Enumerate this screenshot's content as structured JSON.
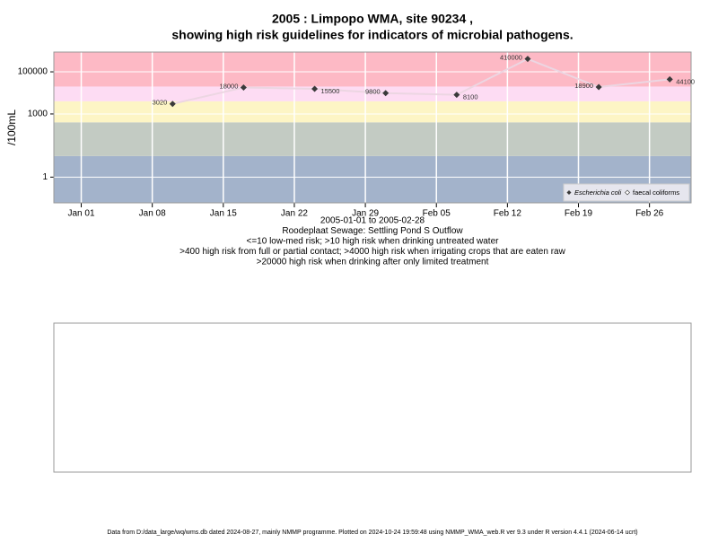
{
  "chart_data": {
    "type": "line",
    "title": "2005 : Limpopo WMA, site 90234 ,",
    "subtitle": "showing high risk guidelines for indicators of microbial pathogens.",
    "y_label": "/100mL",
    "x_notes": [
      "2005-01-01 to 2005-02-28",
      "Roodeplaat Sewage: Settling Pond S Outflow",
      "<=10 low-med risk; >10 high risk when drinking untreated water",
      ">400 high risk from full or partial contact; >4000 high risk when irrigating crops that are eaten raw",
      ">20000 high risk when drinking after only limited treatment"
    ],
    "footer": "Data from D:/data_large/wq/wms.db dated 2024-08-27, mainly NMMP programme. Plotted on 2024-10-24 19:59:48 using NMMP_WMA_web.R ver 9.3 under R version 4.4.1 (2024-06-14 ucrt)",
    "log_scale": true,
    "grid": true,
    "legend_position": "bottom-right",
    "thresholds": [
      10,
      400,
      4000,
      20000
    ],
    "band_colors": [
      "#a3b3cb",
      "#c3cbc3",
      "#fdf5c5",
      "#fddcf3",
      "#fdb9c5"
    ],
    "x": [
      9,
      16,
      23,
      30,
      37,
      44,
      51,
      58
    ],
    "xlim": [
      -2.7,
      60.1
    ],
    "xticks": [
      {
        "value": 0,
        "label": "Jan 01"
      },
      {
        "value": 7,
        "label": "Jan 08"
      },
      {
        "value": 14,
        "label": "Jan 15"
      },
      {
        "value": 21,
        "label": "Jan 22"
      },
      {
        "value": 28,
        "label": "Jan 29"
      },
      {
        "value": 35,
        "label": "Feb 05"
      },
      {
        "value": 42,
        "label": "Feb 12"
      },
      {
        "value": 49,
        "label": "Feb 19"
      },
      {
        "value": 56,
        "label": "Feb 26"
      }
    ],
    "ylim": [
      0.06,
      870000
    ],
    "yticks": [
      1,
      1000,
      100000
    ],
    "series": [
      {
        "name": "Escherichia coli",
        "color": "#3a3a3a",
        "line_color": "#ecd6e2",
        "values": [
          3020,
          18000,
          15500,
          9800,
          8100,
          410000,
          18900,
          44100
        ]
      },
      {
        "name": "faecal coliforms",
        "color": "#ffffff",
        "values": [
          null,
          null,
          null,
          null,
          null,
          null,
          null,
          null
        ]
      }
    ]
  }
}
